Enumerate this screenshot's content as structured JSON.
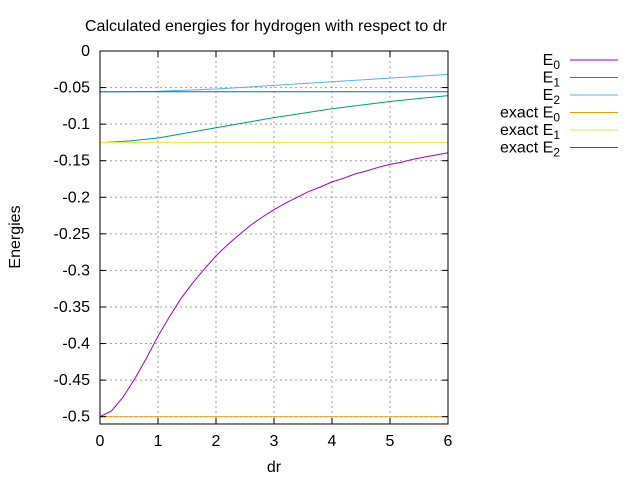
{
  "chart_data": {
    "type": "line",
    "title": "Calculated energies for hydrogen with respect to dr",
    "xlabel": "dr",
    "ylabel": "Energies",
    "xlim": [
      0,
      6
    ],
    "ylim": [
      -0.51,
      0
    ],
    "xticks": [
      0,
      1,
      2,
      3,
      4,
      5,
      6
    ],
    "yticks": [
      0,
      -0.05,
      -0.1,
      -0.15,
      -0.2,
      -0.25,
      -0.3,
      -0.35,
      -0.4,
      -0.45,
      -0.5
    ],
    "ytick_labels": [
      "0",
      "-0.05",
      "-0.1",
      "-0.15",
      "-0.2",
      "-0.25",
      "-0.3",
      "-0.35",
      "-0.4",
      "-0.45",
      "-0.5"
    ],
    "grid": true,
    "legend_position": "top-right, outside plot",
    "series": [
      {
        "name": "E0",
        "label_base": "E",
        "label_sub": "0",
        "color": "#9400d3",
        "x": [
          0.0,
          0.2,
          0.4,
          0.6,
          0.8,
          1.0,
          1.2,
          1.4,
          1.6,
          1.8,
          2.0,
          2.2,
          2.4,
          2.6,
          2.8,
          3.0,
          3.2,
          3.4,
          3.6,
          3.8,
          4.0,
          4.2,
          4.4,
          4.6,
          4.8,
          5.0,
          5.2,
          5.4,
          5.6,
          5.8,
          6.0
        ],
        "y": [
          -0.5,
          -0.492,
          -0.473,
          -0.448,
          -0.42,
          -0.39,
          -0.363,
          -0.338,
          -0.317,
          -0.298,
          -0.28,
          -0.265,
          -0.251,
          -0.238,
          -0.227,
          -0.217,
          -0.208,
          -0.2,
          -0.192,
          -0.186,
          -0.179,
          -0.174,
          -0.168,
          -0.164,
          -0.159,
          -0.155,
          -0.152,
          -0.148,
          -0.145,
          -0.142,
          -0.139
        ]
      },
      {
        "name": "E1",
        "label_base": "E",
        "label_sub": "1",
        "color": "#009e73",
        "x": [
          0.1,
          0.5,
          1.0,
          1.5,
          2.0,
          2.5,
          3.0,
          3.5,
          4.0,
          4.5,
          5.0,
          5.5,
          6.0
        ],
        "y": [
          -0.125,
          -0.123,
          -0.119,
          -0.112,
          -0.105,
          -0.098,
          -0.091,
          -0.085,
          -0.079,
          -0.074,
          -0.069,
          -0.065,
          -0.061
        ]
      },
      {
        "name": "E2",
        "label_base": "E",
        "label_sub": "2",
        "color": "#56b4e9",
        "x": [
          0.0,
          1.0,
          2.0,
          3.0,
          4.0,
          5.0,
          6.0
        ],
        "y": [
          -0.056,
          -0.055,
          -0.052,
          -0.047,
          -0.042,
          -0.037,
          -0.032
        ]
      },
      {
        "name": "exact E0",
        "label_base": "exact E",
        "label_sub": "0",
        "color": "#e69f00",
        "x": [
          0,
          6
        ],
        "y": [
          -0.5,
          -0.5
        ]
      },
      {
        "name": "exact E1",
        "label_base": "exact E",
        "label_sub": "1",
        "color": "#f0e442",
        "x": [
          0,
          6
        ],
        "y": [
          -0.125,
          -0.125
        ]
      },
      {
        "name": "exact E2",
        "label_base": "exact E",
        "label_sub": "2",
        "color": "#0072b2",
        "x": [
          0,
          6
        ],
        "y": [
          -0.0556,
          -0.0556
        ]
      }
    ]
  }
}
